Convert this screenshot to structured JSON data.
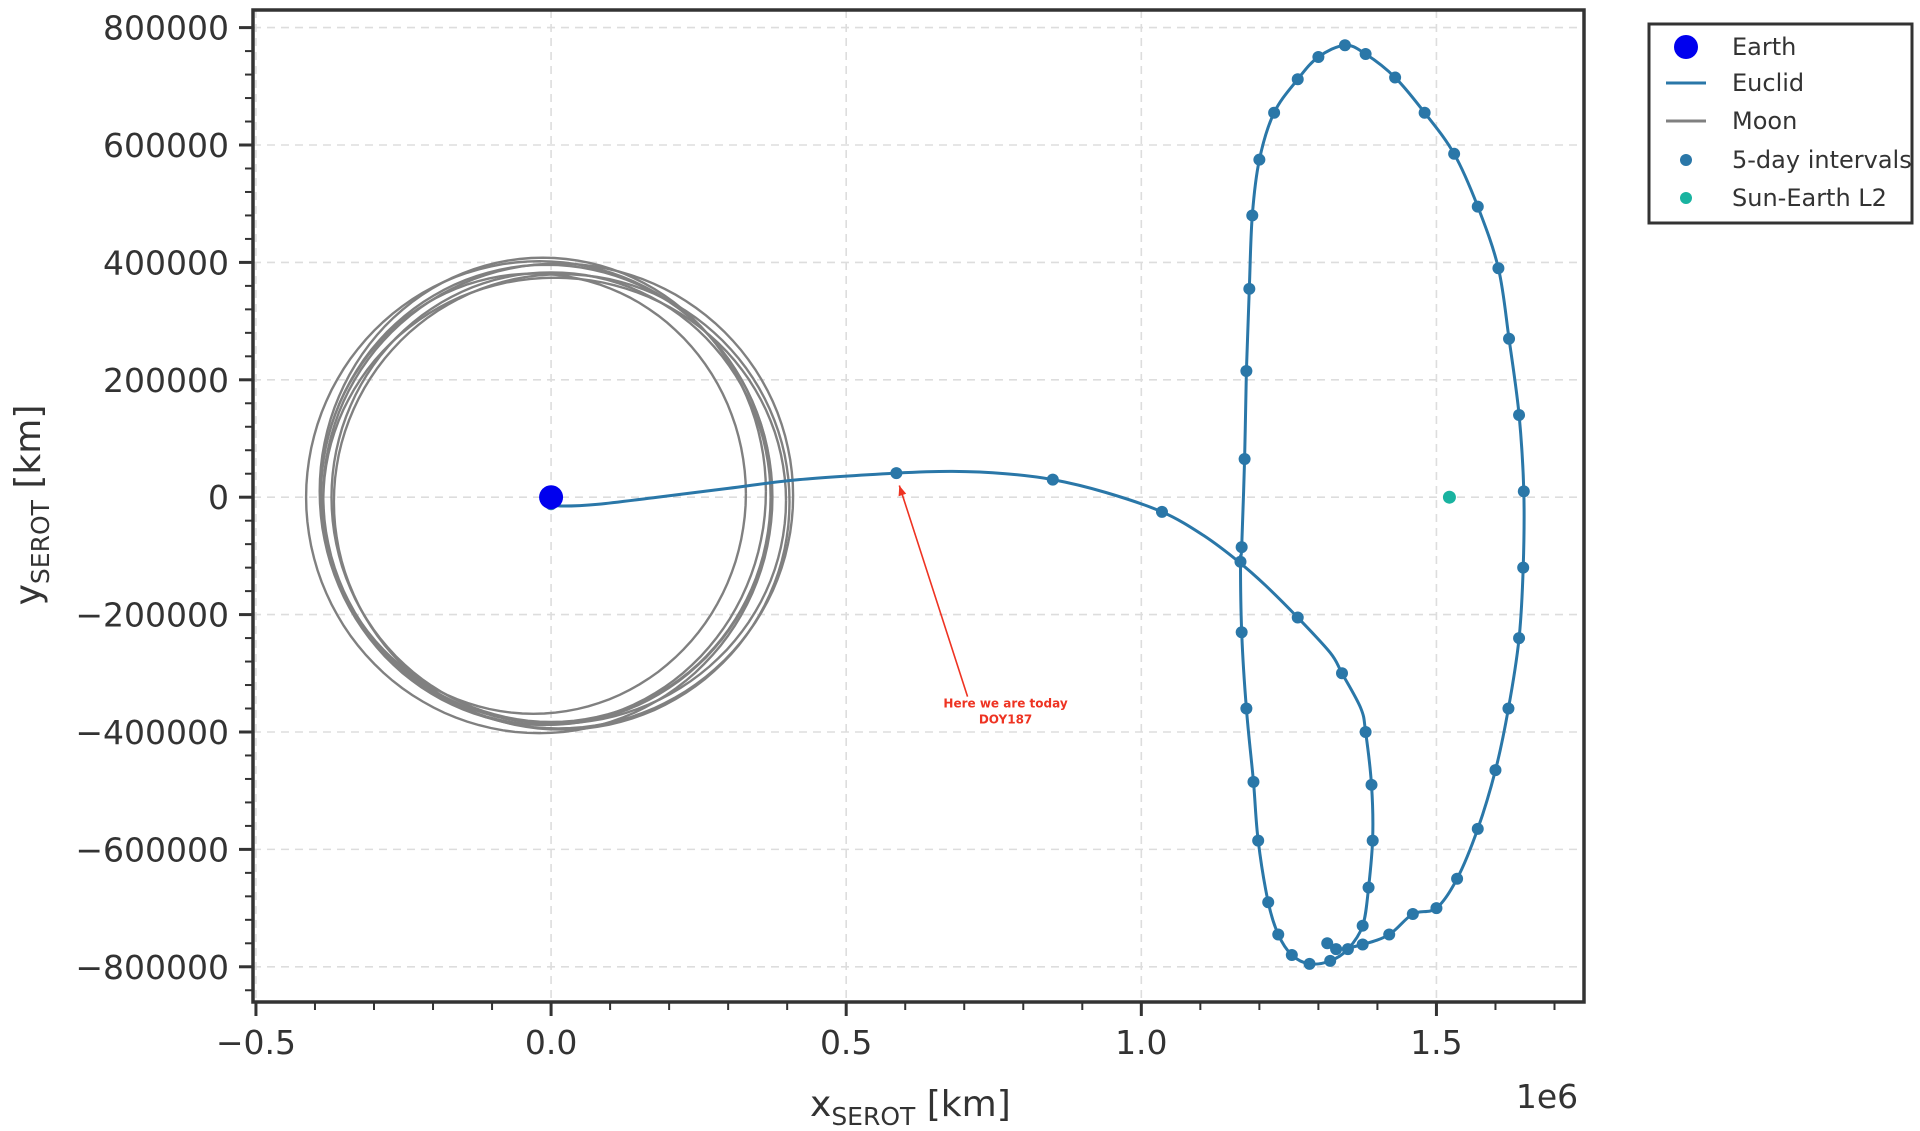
{
  "chart_data": {
    "type": "line",
    "xlabel": {
      "main": "x",
      "sub": "SEROT",
      "unit": " [km]"
    },
    "ylabel": {
      "main": "y",
      "sub": "SEROT",
      "unit": " [km]"
    },
    "x_offset_label": "1e6",
    "xlim": [
      -0.505,
      1.75
    ],
    "ylim": [
      -860000,
      830000
    ],
    "x_ticks": [
      -0.5,
      0.0,
      0.5,
      1.0,
      1.5
    ],
    "x_tick_labels": [
      "−0.5",
      "0.0",
      "0.5",
      "1.0",
      "1.5"
    ],
    "y_ticks": [
      800000,
      600000,
      400000,
      200000,
      0,
      -200000,
      -400000,
      -600000,
      -800000
    ],
    "y_tick_labels": [
      "800000",
      "600000",
      "400000",
      "200000",
      "0",
      "−200000",
      "−400000",
      "−600000",
      "−800000"
    ],
    "grid": true,
    "legend_position": "outside-top-right",
    "colors": {
      "earth": "#0000ee",
      "euclid": "#2a77a8",
      "moon": "#808080",
      "intervals": "#2a77a8",
      "l2": "#19b3a0",
      "annotation": "#ee3322"
    },
    "series": [
      {
        "name": "Earth",
        "kind": "point",
        "x": 0.0,
        "y": 0
      },
      {
        "name": "Euclid",
        "kind": "line",
        "points": [
          [
            0.0,
            -12000
          ],
          [
            0.02,
            -15000
          ],
          [
            0.08,
            -12000
          ],
          [
            0.18,
            0
          ],
          [
            0.3,
            15000
          ],
          [
            0.42,
            30000
          ],
          [
            0.585,
            41000
          ],
          [
            0.68,
            44000
          ],
          [
            0.77,
            40000
          ],
          [
            0.85,
            30000
          ],
          [
            0.94,
            8000
          ],
          [
            1.035,
            -25000
          ],
          [
            1.105,
            -65000
          ],
          [
            1.165,
            -110000
          ],
          [
            1.21,
            -150000
          ],
          [
            1.265,
            -205000
          ],
          [
            1.32,
            -265000
          ],
          [
            1.34,
            -300000
          ],
          [
            1.372,
            -360000
          ],
          [
            1.38,
            -400000
          ],
          [
            1.39,
            -490000
          ],
          [
            1.392,
            -580000
          ],
          [
            1.385,
            -665000
          ],
          [
            1.375,
            -730000
          ],
          [
            1.35,
            -770000
          ],
          [
            1.32,
            -790000
          ],
          [
            1.285,
            -795000
          ],
          [
            1.255,
            -780000
          ],
          [
            1.232,
            -745000
          ],
          [
            1.215,
            -690000
          ],
          [
            1.198,
            -585000
          ],
          [
            1.19,
            -485000
          ],
          [
            1.178,
            -360000
          ],
          [
            1.17,
            -230000
          ],
          [
            1.168,
            -110000
          ],
          [
            1.17,
            -85000
          ],
          [
            1.175,
            65000
          ],
          [
            1.178,
            215000
          ],
          [
            1.183,
            355000
          ],
          [
            1.188,
            480000
          ],
          [
            1.2,
            575000
          ],
          [
            1.225,
            655000
          ],
          [
            1.265,
            712000
          ],
          [
            1.3,
            750000
          ],
          [
            1.345,
            770000
          ],
          [
            1.38,
            755000
          ],
          [
            1.43,
            715000
          ],
          [
            1.48,
            655000
          ],
          [
            1.53,
            585000
          ],
          [
            1.57,
            495000
          ],
          [
            1.605,
            390000
          ],
          [
            1.623,
            270000
          ],
          [
            1.64,
            140000
          ],
          [
            1.648,
            10000
          ],
          [
            1.647,
            -120000
          ],
          [
            1.64,
            -240000
          ],
          [
            1.622,
            -360000
          ],
          [
            1.6,
            -465000
          ],
          [
            1.57,
            -565000
          ],
          [
            1.535,
            -650000
          ],
          [
            1.5,
            -700000
          ],
          [
            1.46,
            -710000
          ],
          [
            1.42,
            -745000
          ],
          [
            1.375,
            -762000
          ],
          [
            1.33,
            -770000
          ],
          [
            1.315,
            -760000
          ]
        ]
      },
      {
        "name": "Moon",
        "kind": "line"
      },
      {
        "name": "5-day intervals",
        "kind": "scatter",
        "points": [
          [
            0.0,
            -12000
          ],
          [
            0.585,
            41000
          ],
          [
            0.85,
            30000
          ],
          [
            1.035,
            -25000
          ],
          [
            1.265,
            -205000
          ],
          [
            1.34,
            -300000
          ],
          [
            1.38,
            -400000
          ],
          [
            1.39,
            -490000
          ],
          [
            1.392,
            -585000
          ],
          [
            1.385,
            -665000
          ],
          [
            1.375,
            -730000
          ],
          [
            1.35,
            -770000
          ],
          [
            1.32,
            -790000
          ],
          [
            1.285,
            -795000
          ],
          [
            1.255,
            -780000
          ],
          [
            1.232,
            -745000
          ],
          [
            1.215,
            -690000
          ],
          [
            1.198,
            -585000
          ],
          [
            1.19,
            -485000
          ],
          [
            1.178,
            -360000
          ],
          [
            1.17,
            -230000
          ],
          [
            1.168,
            -110000
          ],
          [
            1.17,
            -85000
          ],
          [
            1.175,
            65000
          ],
          [
            1.178,
            215000
          ],
          [
            1.183,
            355000
          ],
          [
            1.188,
            480000
          ],
          [
            1.2,
            575000
          ],
          [
            1.225,
            655000
          ],
          [
            1.265,
            712000
          ],
          [
            1.3,
            750000
          ],
          [
            1.345,
            770000
          ],
          [
            1.38,
            755000
          ],
          [
            1.43,
            715000
          ],
          [
            1.48,
            655000
          ],
          [
            1.53,
            585000
          ],
          [
            1.57,
            495000
          ],
          [
            1.605,
            390000
          ],
          [
            1.623,
            270000
          ],
          [
            1.64,
            140000
          ],
          [
            1.648,
            10000
          ],
          [
            1.647,
            -120000
          ],
          [
            1.64,
            -240000
          ],
          [
            1.622,
            -360000
          ],
          [
            1.6,
            -465000
          ],
          [
            1.57,
            -565000
          ],
          [
            1.535,
            -650000
          ],
          [
            1.5,
            -700000
          ],
          [
            1.46,
            -710000
          ],
          [
            1.42,
            -745000
          ],
          [
            1.375,
            -762000
          ],
          [
            1.33,
            -770000
          ],
          [
            1.315,
            -760000
          ]
        ]
      },
      {
        "name": "Sun-Earth L2",
        "kind": "point",
        "x": 1.522,
        "y": 0
      }
    ],
    "annotation": {
      "line1": "Here we are today",
      "line2": "DOY187",
      "text_x": 0.77,
      "text_y": -350000,
      "arrow_x": 0.59,
      "arrow_y": 20000
    }
  }
}
